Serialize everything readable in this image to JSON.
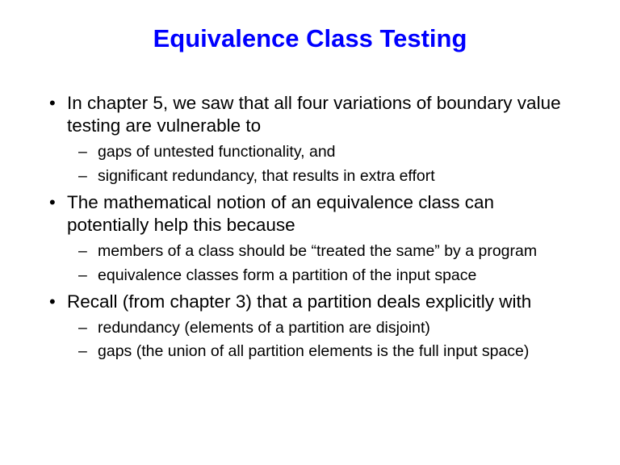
{
  "title": "Equivalence Class Testing",
  "colors": {
    "title": "#0000ff",
    "body_text": "#000000",
    "background": "#ffffff"
  },
  "typography": {
    "title_fontsize": 31,
    "title_weight": "bold",
    "bullet_fontsize": 22.5,
    "sub_bullet_fontsize": 19.5,
    "font_family": "Arial"
  },
  "bullets": [
    {
      "text": "In chapter 5, we saw that all four variations of boundary value testing are vulnerable to",
      "subs": [
        "gaps of untested functionality, and",
        "significant redundancy, that results in extra effort"
      ]
    },
    {
      "text": "The mathematical notion of an equivalence class can potentially help this because",
      "subs": [
        "members of a class should be “treated the same” by a program",
        "equivalence classes form a partition of the input space"
      ]
    },
    {
      "text": "Recall (from chapter 3) that a partition deals explicitly with",
      "subs": [
        "redundancy (elements of a partition are disjoint)",
        "gaps (the union of all partition elements is the full input space)"
      ]
    }
  ]
}
